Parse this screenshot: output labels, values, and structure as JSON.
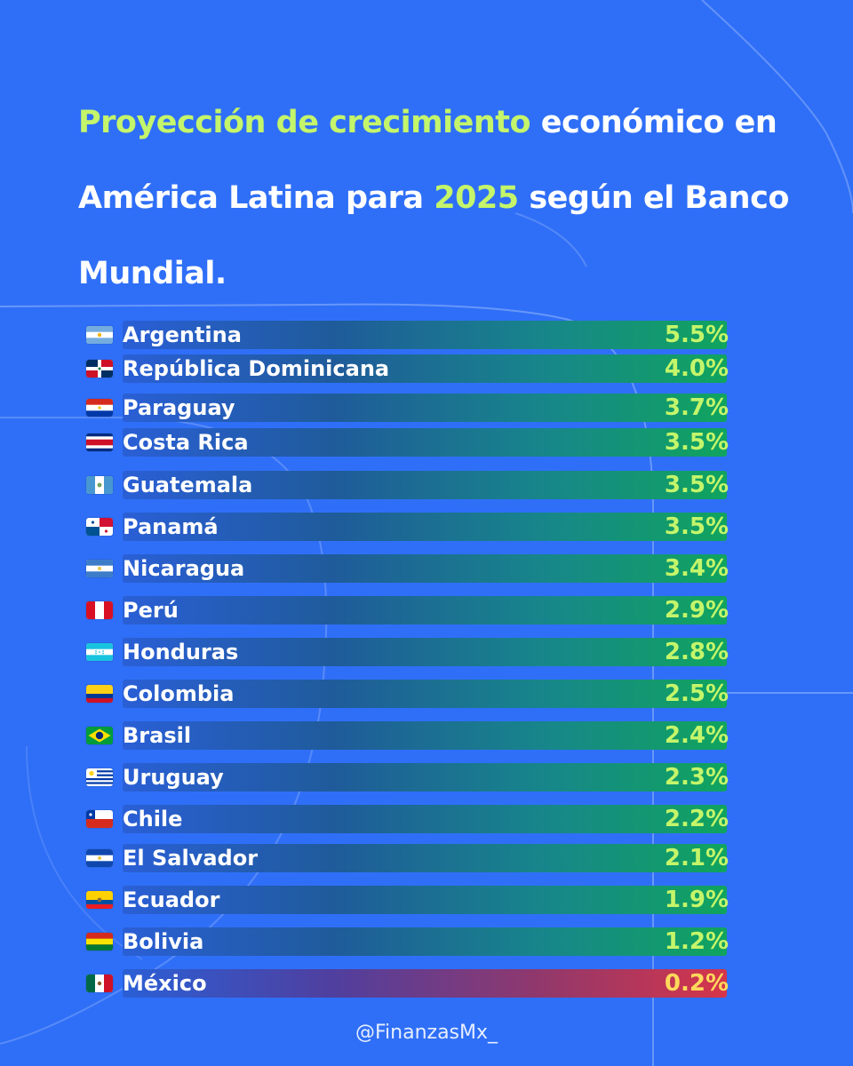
{
  "title": {
    "part1_highlight": "Proyección de crecimiento",
    "part2": " económico en América Latina para ",
    "part3_highlight": "2025",
    "part4": " según el Banco Mundial."
  },
  "colors": {
    "background": "#2f6ff7",
    "highlight": "#c4f56a",
    "bar_start": "#2a5fd6",
    "bar_end_green": "#10a45e",
    "bar_end_red": "#d5354a",
    "value_last": "#ffd95c"
  },
  "chart_data": {
    "type": "bar",
    "orientation": "horizontal",
    "unit": "%",
    "categories": [
      "Argentina",
      "República Dominicana",
      "Paraguay",
      "Costa Rica",
      "Guatemala",
      "Panamá",
      "Nicaragua",
      "Perú",
      "Honduras",
      "Colombia",
      "Brasil",
      "Uruguay",
      "Chile",
      "El Salvador",
      "Ecuador",
      "Bolivia",
      "México"
    ],
    "values": [
      5.5,
      4.0,
      3.7,
      3.5,
      3.5,
      3.5,
      3.4,
      2.9,
      2.8,
      2.5,
      2.4,
      2.3,
      2.2,
      2.1,
      1.9,
      1.2,
      0.2
    ],
    "labels": [
      "5.5%",
      "4.0%",
      "3.7%",
      "3.5%",
      "3.5%",
      "3.5%",
      "3.4%",
      "2.9%",
      "2.8%",
      "2.5%",
      "2.4%",
      "2.3%",
      "2.2%",
      "2.1%",
      "1.9%",
      "1.2%",
      "0.2%"
    ],
    "flags": [
      "argentina-flag-icon",
      "dominican-republic-flag-icon",
      "paraguay-flag-icon",
      "costa-rica-flag-icon",
      "guatemala-flag-icon",
      "panama-flag-icon",
      "nicaragua-flag-icon",
      "peru-flag-icon",
      "honduras-flag-icon",
      "colombia-flag-icon",
      "brazil-flag-icon",
      "uruguay-flag-icon",
      "chile-flag-icon",
      "el-salvador-flag-icon",
      "ecuador-flag-icon",
      "bolivia-flag-icon",
      "mexico-flag-icon"
    ],
    "highlighted_last": true
  },
  "footer": {
    "handle": "@FinanzasMx_"
  }
}
